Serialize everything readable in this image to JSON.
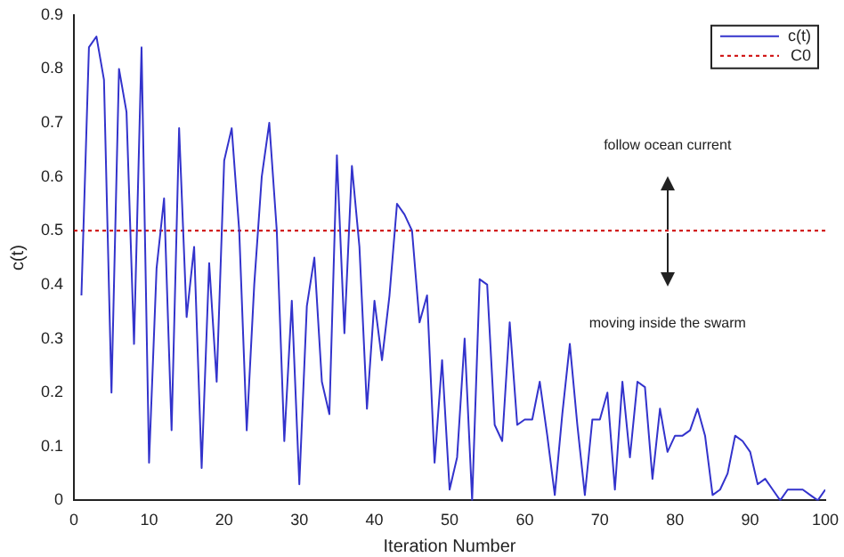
{
  "chart_data": {
    "type": "line",
    "xlabel": "Iteration Number",
    "ylabel": "c(t)",
    "x": [
      1,
      2,
      3,
      4,
      5,
      6,
      7,
      8,
      9,
      10,
      11,
      12,
      13,
      14,
      15,
      16,
      17,
      18,
      19,
      20,
      21,
      22,
      23,
      24,
      25,
      26,
      27,
      28,
      29,
      30,
      31,
      32,
      33,
      34,
      35,
      36,
      37,
      38,
      39,
      40,
      41,
      42,
      43,
      44,
      45,
      46,
      47,
      48,
      49,
      50,
      51,
      52,
      53,
      54,
      55,
      56,
      57,
      58,
      59,
      60,
      61,
      62,
      63,
      64,
      65,
      66,
      67,
      68,
      69,
      70,
      71,
      72,
      73,
      74,
      75,
      76,
      77,
      78,
      79,
      80,
      81,
      82,
      83,
      84,
      85,
      86,
      87,
      88,
      89,
      90,
      91,
      92,
      93,
      94,
      95,
      96,
      97,
      98,
      99,
      100
    ],
    "series": [
      {
        "name": "c(t)",
        "color": "#3333cc",
        "line_style": "solid",
        "values": [
          0.38,
          0.84,
          0.86,
          0.78,
          0.2,
          0.8,
          0.72,
          0.29,
          0.84,
          0.07,
          0.43,
          0.56,
          0.13,
          0.69,
          0.34,
          0.47,
          0.06,
          0.44,
          0.22,
          0.63,
          0.69,
          0.5,
          0.13,
          0.4,
          0.6,
          0.7,
          0.5,
          0.11,
          0.37,
          0.03,
          0.36,
          0.45,
          0.22,
          0.16,
          0.64,
          0.31,
          0.62,
          0.47,
          0.17,
          0.37,
          0.26,
          0.38,
          0.55,
          0.53,
          0.5,
          0.33,
          0.38,
          0.07,
          0.26,
          0.02,
          0.08,
          0.3,
          0.0,
          0.41,
          0.4,
          0.14,
          0.11,
          0.33,
          0.14,
          0.15,
          0.15,
          0.22,
          0.12,
          0.01,
          0.16,
          0.29,
          0.14,
          0.01,
          0.15,
          0.15,
          0.2,
          0.02,
          0.22,
          0.08,
          0.22,
          0.21,
          0.04,
          0.17,
          0.09,
          0.12,
          0.12,
          0.13,
          0.17,
          0.12,
          0.01,
          0.02,
          0.05,
          0.12,
          0.11,
          0.09,
          0.03,
          0.04,
          0.02,
          0.0,
          0.02,
          0.02,
          0.02,
          0.01,
          0.0,
          0.02
        ]
      },
      {
        "name": "C0",
        "color": "#cc0000",
        "line_style": "dotted",
        "x": [
          0,
          100
        ],
        "values": [
          0.5,
          0.5
        ]
      }
    ],
    "xlim": [
      0,
      100
    ],
    "xticks": [
      0,
      10,
      20,
      30,
      40,
      50,
      60,
      70,
      80,
      90,
      100
    ],
    "ylim": [
      0,
      0.9
    ],
    "yticks": [
      0,
      0.1,
      0.2,
      0.3,
      0.4,
      0.5,
      0.6,
      0.7,
      0.8,
      0.9
    ],
    "grid": false,
    "legend": "top right",
    "marker": "none",
    "annotations": [
      "follow ocean current",
      "moving inside the swarm"
    ]
  }
}
